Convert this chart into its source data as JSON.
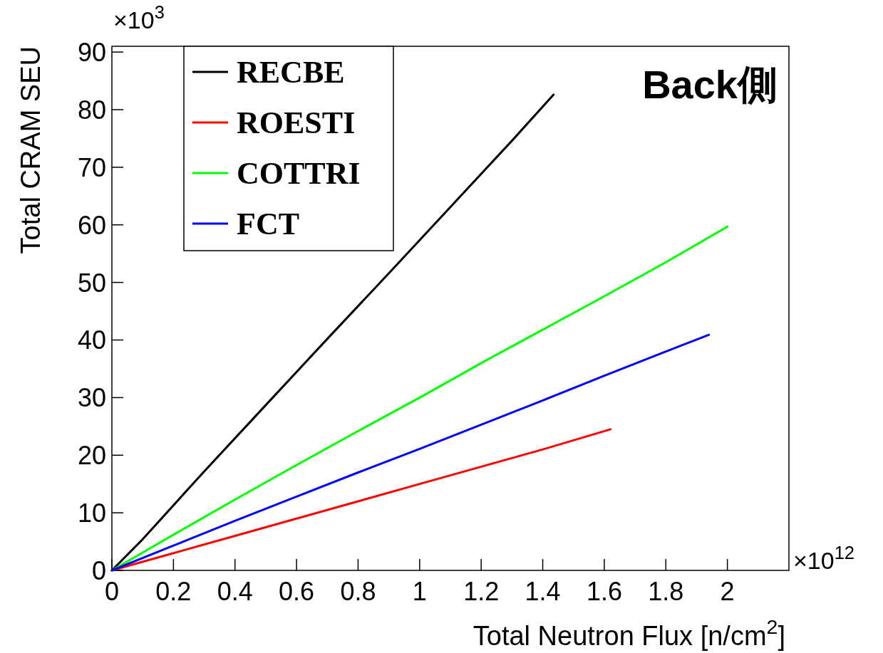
{
  "chart_data": {
    "type": "line",
    "title": "Back側",
    "xlabel": "Total Neutron Flux [n/cm$^{2}$]",
    "ylabel": "Total CRAM SEU",
    "annotations": [
      "×10$^{3}$",
      "×10$^{12}$"
    ],
    "xlim": [
      0,
      2.2
    ],
    "ylim": [
      0,
      91
    ],
    "xticks": [
      0,
      0.2,
      0.4,
      0.6,
      0.8,
      1,
      1.2,
      1.4,
      1.6,
      1.8,
      2
    ],
    "yticks": [
      0,
      10,
      20,
      30,
      40,
      50,
      60,
      70,
      80,
      90
    ],
    "legend": "top left",
    "grid": false,
    "marker": "none",
    "line_style": "solid",
    "series": [
      {
        "name": "RECBE",
        "color": "#000000",
        "x": [
          0,
          0.1,
          0.3,
          0.5,
          0.7,
          0.9,
          1.1,
          1.3,
          1.435
        ],
        "values": [
          0,
          5.4,
          17.2,
          28.7,
          40.2,
          51.6,
          63.1,
          74.6,
          82.6
        ]
      },
      {
        "name": "ROESTI",
        "color": "#ff0000",
        "x": [
          0,
          0.2,
          0.4,
          0.6,
          0.8,
          1,
          1.2,
          1.4,
          1.62
        ],
        "values": [
          0,
          3.0,
          6.0,
          9.0,
          12.0,
          15.0,
          18.0,
          21.0,
          24.5
        ]
      },
      {
        "name": "COTTRI",
        "color": "#00ff00",
        "x": [
          0,
          0.2,
          0.4,
          0.6,
          0.8,
          1,
          1.2,
          1.4,
          1.6,
          1.8,
          2.0
        ],
        "values": [
          0,
          6.2,
          12.3,
          18.3,
          24.2,
          30.0,
          36.0,
          41.8,
          47.6,
          53.5,
          59.7
        ]
      },
      {
        "name": "FCT",
        "color": "#0000ff",
        "x": [
          0,
          0.2,
          0.4,
          0.6,
          0.8,
          1,
          1.2,
          1.4,
          1.6,
          1.8,
          1.94
        ],
        "values": [
          0,
          4.3,
          8.6,
          12.8,
          17.0,
          21.1,
          25.3,
          29.5,
          33.8,
          38.0,
          40.9
        ]
      }
    ]
  }
}
